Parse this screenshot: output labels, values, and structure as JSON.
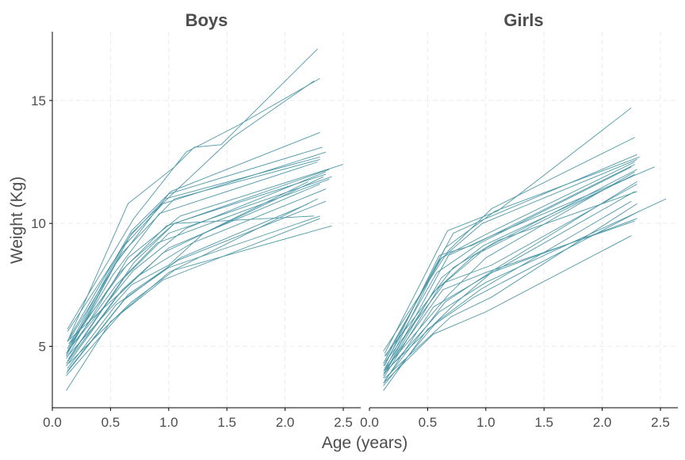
{
  "chart_data": {
    "type": "line",
    "xlabel": "Age (years)",
    "ylabel": "Weight (Kg)",
    "xlim": [
      0,
      2.65
    ],
    "ylim": [
      2.5,
      17.8
    ],
    "xticks": [
      0.0,
      0.5,
      1.0,
      1.5,
      2.0,
      2.5
    ],
    "xtick_labels": [
      "0.0",
      "0.5",
      "1.0",
      "1.5",
      "2.0",
      "2.5"
    ],
    "yticks": [
      5,
      10,
      15
    ],
    "ytick_labels": [
      "5",
      "10",
      "15"
    ],
    "grid": true,
    "line_color": "#4e98a8",
    "panels": [
      {
        "title": "Boys",
        "series": [
          {
            "x": [
              0.13,
              0.65,
              1.05,
              1.22,
              1.45,
              2.28
            ],
            "y": [
              5.2,
              10.8,
              12.3,
              13.1,
              13.2,
              17.1
            ]
          },
          {
            "x": [
              0.13,
              0.7,
              1.15,
              1.6,
              2.3
            ],
            "y": [
              5.7,
              10.2,
              12.9,
              14.0,
              15.9
            ]
          },
          {
            "x": [
              0.12,
              0.68,
              1.1,
              1.55,
              2.25
            ],
            "y": [
              4.7,
              9.6,
              11.5,
              13.5,
              15.8
            ]
          },
          {
            "x": [
              0.14,
              0.68,
              1.02,
              2.3
            ],
            "y": [
              5.3,
              9.7,
              11.3,
              13.7
            ]
          },
          {
            "x": [
              0.12,
              0.55,
              1.0,
              2.32
            ],
            "y": [
              4.6,
              8.4,
              11.2,
              13.1
            ]
          },
          {
            "x": [
              0.13,
              0.6,
              0.95,
              2.35
            ],
            "y": [
              4.9,
              9.0,
              10.8,
              12.9
            ]
          },
          {
            "x": [
              0.15,
              0.6,
              1.05,
              2.3
            ],
            "y": [
              5.3,
              8.8,
              11.0,
              12.6
            ]
          },
          {
            "x": [
              0.13,
              0.52,
              0.92,
              2.28
            ],
            "y": [
              4.8,
              7.9,
              10.4,
              12.5
            ]
          },
          {
            "x": [
              0.12,
              0.65,
              1.1,
              2.5
            ],
            "y": [
              4.5,
              8.6,
              10.3,
              12.4
            ]
          },
          {
            "x": [
              0.14,
              0.58,
              0.98,
              2.35
            ],
            "y": [
              5.0,
              8.0,
              9.9,
              12.0
            ]
          },
          {
            "x": [
              0.13,
              0.62,
              1.0,
              2.4
            ],
            "y": [
              4.4,
              7.8,
              9.6,
              11.9
            ]
          },
          {
            "x": [
              0.12,
              0.55,
              0.9,
              2.38
            ],
            "y": [
              4.7,
              7.5,
              9.2,
              11.8
            ]
          },
          {
            "x": [
              0.14,
              0.64,
              1.05,
              2.38
            ],
            "y": [
              5.1,
              8.3,
              10.0,
              12.2
            ]
          },
          {
            "x": [
              0.12,
              0.6,
              1.0,
              2.3
            ],
            "y": [
              4.2,
              7.3,
              9.0,
              11.6
            ]
          },
          {
            "x": [
              0.13,
              0.7,
              1.15,
              2.35
            ],
            "y": [
              4.8,
              8.1,
              9.8,
              12.1
            ]
          },
          {
            "x": [
              0.12,
              0.55,
              0.95,
              2.33
            ],
            "y": [
              4.3,
              7.0,
              8.8,
              11.9
            ]
          },
          {
            "x": [
              0.13,
              0.68,
              1.0,
              1.3,
              2.2
            ],
            "y": [
              4.6,
              7.5,
              8.3,
              9.6,
              11.7
            ]
          },
          {
            "x": [
              0.12,
              0.62,
              1.1,
              2.2
            ],
            "y": [
              3.9,
              6.9,
              8.6,
              10.8
            ]
          },
          {
            "x": [
              0.13,
              0.55,
              1.0,
              2.3
            ],
            "y": [
              4.1,
              6.7,
              8.2,
              10.3
            ]
          },
          {
            "x": [
              0.14,
              0.7,
              1.05,
              2.25
            ],
            "y": [
              4.5,
              8.4,
              10.0,
              10.3
            ]
          },
          {
            "x": [
              0.13,
              0.65,
              1.08,
              2.35
            ],
            "y": [
              4.0,
              7.1,
              8.5,
              10.9
            ]
          },
          {
            "x": [
              0.12,
              0.6,
              1.0,
              2.28
            ],
            "y": [
              3.8,
              6.4,
              8.0,
              11.0
            ]
          },
          {
            "x": [
              0.12,
              0.5,
              0.95,
              2.3
            ],
            "y": [
              3.2,
              6.0,
              7.7,
              10.2
            ]
          },
          {
            "x": [
              0.14,
              0.68,
              1.05,
              2.4
            ],
            "y": [
              4.3,
              6.8,
              8.1,
              9.9
            ]
          },
          {
            "x": [
              0.13,
              0.75,
              1.2,
              2.35
            ],
            "y": [
              5.2,
              7.9,
              9.2,
              11.4
            ]
          },
          {
            "x": [
              0.13,
              0.67,
              0.97,
              2.3
            ],
            "y": [
              5.6,
              9.5,
              11.0,
              12.7
            ]
          }
        ]
      },
      {
        "title": "Girls",
        "series": [
          {
            "x": [
              0.13,
              0.67,
              1.1,
              2.25
            ],
            "y": [
              4.7,
              9.7,
              10.5,
              14.7
            ]
          },
          {
            "x": [
              0.12,
              0.68,
              1.05,
              2.28
            ],
            "y": [
              4.8,
              8.9,
              10.6,
              13.5
            ]
          },
          {
            "x": [
              0.13,
              0.72,
              1.0,
              2.3
            ],
            "y": [
              4.4,
              9.6,
              10.2,
              12.8
            ]
          },
          {
            "x": [
              0.12,
              0.65,
              1.08,
              2.32
            ],
            "y": [
              4.3,
              9.0,
              10.5,
              12.7
            ]
          },
          {
            "x": [
              0.13,
              0.6,
              0.97,
              2.3
            ],
            "y": [
              4.0,
              8.5,
              10.0,
              12.6
            ]
          },
          {
            "x": [
              0.14,
              0.62,
              1.02,
              2.28
            ],
            "y": [
              4.6,
              8.6,
              9.6,
              12.5
            ]
          },
          {
            "x": [
              0.12,
              0.58,
              0.95,
              2.25
            ],
            "y": [
              4.2,
              8.0,
              9.2,
              12.3
            ]
          },
          {
            "x": [
              0.13,
              0.68,
              1.05,
              2.45
            ],
            "y": [
              3.9,
              8.7,
              9.5,
              12.3
            ]
          },
          {
            "x": [
              0.12,
              0.6,
              1.0,
              2.3
            ],
            "y": [
              3.7,
              7.4,
              9.0,
              12.2
            ]
          },
          {
            "x": [
              0.13,
              0.55,
              0.9,
              2.28
            ],
            "y": [
              4.1,
              7.2,
              8.7,
              12.0
            ]
          },
          {
            "x": [
              0.12,
              0.62,
              0.98,
              2.25
            ],
            "y": [
              3.8,
              7.8,
              9.1,
              11.9
            ]
          },
          {
            "x": [
              0.13,
              0.65,
              1.1,
              2.3
            ],
            "y": [
              3.6,
              6.8,
              8.2,
              11.7
            ]
          },
          {
            "x": [
              0.12,
              0.55,
              0.98,
              2.28
            ],
            "y": [
              3.5,
              6.6,
              7.8,
              11.3
            ]
          },
          {
            "x": [
              0.13,
              0.6,
              1.0,
              2.55
            ],
            "y": [
              3.9,
              6.4,
              7.6,
              11.0
            ]
          },
          {
            "x": [
              0.12,
              0.58,
              0.95,
              2.25
            ],
            "y": [
              3.4,
              6.0,
              7.3,
              10.9
            ]
          },
          {
            "x": [
              0.13,
              0.7,
              1.05,
              2.3
            ],
            "y": [
              3.7,
              6.2,
              7.0,
              10.8
            ]
          },
          {
            "x": [
              0.12,
              0.5,
              0.9,
              2.32
            ],
            "y": [
              3.2,
              5.7,
              7.0,
              10.5
            ]
          },
          {
            "x": [
              0.12,
              0.75,
              1.05,
              2.3
            ],
            "y": [
              3.9,
              6.8,
              8.0,
              10.2
            ]
          },
          {
            "x": [
              0.13,
              0.63,
              1.0,
              2.28
            ],
            "y": [
              4.0,
              7.3,
              8.0,
              10.1
            ]
          },
          {
            "x": [
              0.12,
              0.55,
              1.0,
              2.25
            ],
            "y": [
              3.5,
              5.5,
              6.4,
              9.5
            ]
          },
          {
            "x": [
              0.14,
              0.65,
              1.05,
              2.3
            ],
            "y": [
              4.4,
              7.6,
              8.3,
              11.6
            ]
          },
          {
            "x": [
              0.13,
              0.6,
              0.88,
              2.28
            ],
            "y": [
              4.2,
              8.7,
              9.1,
              12.4
            ]
          },
          {
            "x": [
              0.12,
              0.68,
              1.0,
              2.28
            ],
            "y": [
              4.0,
              7.1,
              8.6,
              12.1
            ]
          },
          {
            "x": [
              0.13,
              0.72,
              1.1,
              2.3
            ],
            "y": [
              4.6,
              8.2,
              9.3,
              11.3
            ]
          }
        ]
      }
    ]
  }
}
